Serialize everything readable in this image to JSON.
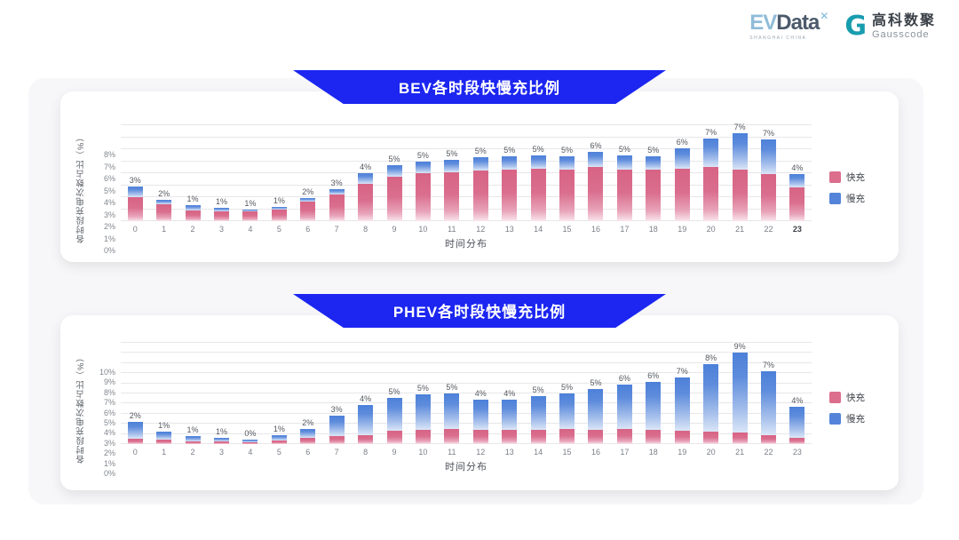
{
  "header": {
    "evdata": {
      "ev": "EV",
      "data": "Data",
      "mark": "✕",
      "tagline": "SHANGHAI CHINA"
    },
    "gausscode": {
      "glyph": "G",
      "name_cn": "高科数聚",
      "name_en": "Gausscode"
    }
  },
  "colors": {
    "banner_blue": "#1c26f0",
    "fast_pink": "#dc6d8c",
    "slow_blue": "#5484da",
    "panel_bg": "#f7f7f9"
  },
  "chart_data": [
    {
      "id": "bev",
      "type": "bar",
      "stacked": true,
      "title": "BEV各时段快慢充比例",
      "xlabel": "时间分布",
      "ylabel": "各时段充电次数占比（%）",
      "ylim": [
        0,
        8
      ],
      "y_tick_step": 1,
      "y_tick_suffix": "%",
      "grid": true,
      "legend_position": "right",
      "x": [
        "0",
        "1",
        "2",
        "3",
        "4",
        "5",
        "6",
        "7",
        "8",
        "9",
        "10",
        "11",
        "12",
        "13",
        "14",
        "15",
        "16",
        "17",
        "18",
        "19",
        "20",
        "21",
        "22",
        "23"
      ],
      "series": [
        {
          "name": "快充",
          "color": "#dc6d8c",
          "values": [
            2.0,
            1.4,
            0.9,
            0.85,
            0.85,
            1.0,
            1.6,
            2.2,
            3.1,
            3.7,
            4.0,
            4.1,
            4.2,
            4.3,
            4.4,
            4.3,
            4.5,
            4.3,
            4.3,
            4.4,
            4.5,
            4.3,
            3.9,
            2.8
          ]
        },
        {
          "name": "慢充",
          "color": "#5484da",
          "values": [
            0.9,
            0.4,
            0.4,
            0.25,
            0.1,
            0.2,
            0.3,
            0.5,
            0.9,
            1.0,
            1.0,
            1.0,
            1.1,
            1.1,
            1.1,
            1.1,
            1.3,
            1.2,
            1.1,
            1.7,
            2.4,
            3.0,
            2.9,
            1.1
          ]
        }
      ],
      "bar_total_labels": [
        "3%",
        "2%",
        "1%",
        "1%",
        "1%",
        "1%",
        "2%",
        "3%",
        "4%",
        "5%",
        "5%",
        "5%",
        "5%",
        "5%",
        "5%",
        "5%",
        "6%",
        "5%",
        "5%",
        "6%",
        "7%",
        "7%",
        "7%",
        "4%"
      ],
      "emphasized_x_label": "23"
    },
    {
      "id": "phev",
      "type": "bar",
      "stacked": true,
      "title": "PHEV各时段快慢充比例",
      "xlabel": "时间分布",
      "ylabel": "各时段充电次数占比（%）",
      "ylim": [
        0,
        10
      ],
      "y_tick_step": 1,
      "y_tick_suffix": "%",
      "grid": true,
      "legend_position": "right",
      "x": [
        "0",
        "1",
        "2",
        "3",
        "4",
        "5",
        "6",
        "7",
        "8",
        "9",
        "10",
        "11",
        "12",
        "13",
        "14",
        "15",
        "16",
        "17",
        "18",
        "19",
        "20",
        "21",
        "22",
        "23"
      ],
      "series": [
        {
          "name": "快充",
          "color": "#dc6d8c",
          "values": [
            0.5,
            0.4,
            0.3,
            0.3,
            0.2,
            0.35,
            0.6,
            0.8,
            0.9,
            1.3,
            1.4,
            1.5,
            1.4,
            1.4,
            1.4,
            1.5,
            1.4,
            1.5,
            1.4,
            1.3,
            1.2,
            1.1,
            0.9,
            0.6
          ]
        },
        {
          "name": "慢充",
          "color": "#5484da",
          "values": [
            1.7,
            0.8,
            0.5,
            0.35,
            0.25,
            0.5,
            0.9,
            2.0,
            3.0,
            3.3,
            3.5,
            3.5,
            3.0,
            3.0,
            3.3,
            3.5,
            4.0,
            4.4,
            4.7,
            5.3,
            6.7,
            7.9,
            6.3,
            3.1
          ]
        }
      ],
      "bar_total_labels": [
        "2%",
        "1%",
        "1%",
        "1%",
        "0%",
        "1%",
        "2%",
        "3%",
        "4%",
        "5%",
        "5%",
        "5%",
        "4%",
        "4%",
        "5%",
        "5%",
        "5%",
        "6%",
        "6%",
        "7%",
        "8%",
        "9%",
        "7%",
        "4%"
      ],
      "emphasized_x_label": null
    }
  ]
}
